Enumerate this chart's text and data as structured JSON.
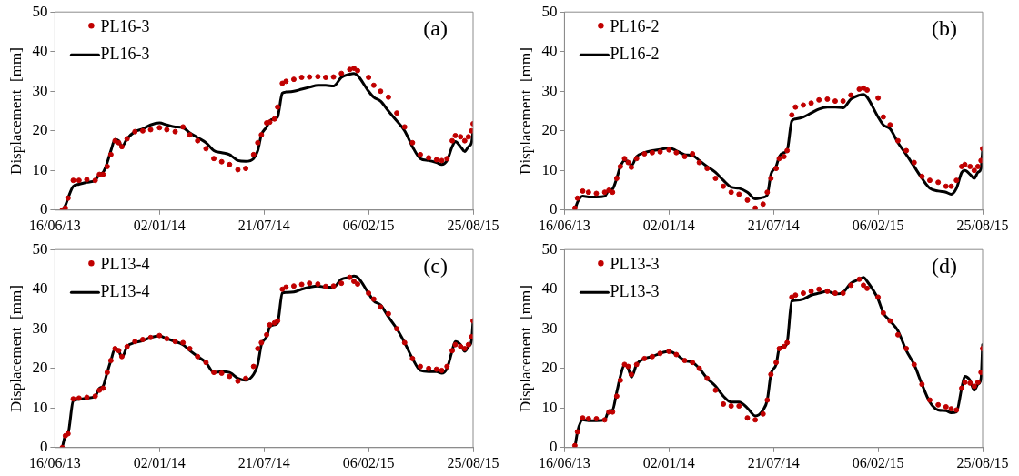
{
  "chart_data": [
    {
      "type": "line",
      "ylabel": "Displacement  [mm]",
      "annotations": [
        "(a)"
      ],
      "legend": "top left",
      "grid": false,
      "xlim": [
        "2013-06-16",
        "2015-08-25"
      ],
      "xticks": [
        {
          "value": "2013-06-16",
          "label": "16/06/13"
        },
        {
          "value": "2014-01-02",
          "label": "02/01/14"
        },
        {
          "value": "2014-07-21",
          "label": "21/07/14"
        },
        {
          "value": "2015-02-06",
          "label": "06/02/15"
        },
        {
          "value": "2015-08-25",
          "label": "25/08/15"
        }
      ],
      "ylim": [
        0,
        50
      ],
      "yticks": [
        0,
        10,
        20,
        30,
        40,
        50
      ],
      "x": [
        "2013-06-30",
        "2013-07-06",
        "2013-07-11",
        "2013-07-21",
        "2013-08-01",
        "2013-08-16",
        "2013-09-01",
        "2013-09-09",
        "2013-09-16",
        "2013-09-24",
        "2013-10-01",
        "2013-10-09",
        "2013-10-16",
        "2013-10-22",
        "2013-11-01",
        "2013-11-16",
        "2013-12-01",
        "2013-12-16",
        "2014-01-02",
        "2014-01-16",
        "2014-02-01",
        "2014-02-16",
        "2014-03-01",
        "2014-03-16",
        "2014-04-01",
        "2014-04-16",
        "2014-05-01",
        "2014-05-16",
        "2014-06-01",
        "2014-06-16",
        "2014-07-01",
        "2014-07-09",
        "2014-07-16",
        "2014-07-26",
        "2014-08-01",
        "2014-08-10",
        "2014-08-16",
        "2014-08-25",
        "2014-09-01",
        "2014-09-16",
        "2014-10-01",
        "2014-10-16",
        "2014-11-01",
        "2014-11-16",
        "2014-12-01",
        "2014-12-16",
        "2015-01-01",
        "2015-01-09",
        "2015-01-16",
        "2015-02-06",
        "2015-02-16",
        "2015-03-01",
        "2015-03-16",
        "2015-04-01",
        "2015-04-16",
        "2015-05-01",
        "2015-05-16",
        "2015-06-01",
        "2015-06-16",
        "2015-06-26",
        "2015-07-06",
        "2015-07-16",
        "2015-07-22",
        "2015-08-01",
        "2015-08-09",
        "2015-08-16",
        "2015-08-22",
        "2015-08-25"
      ],
      "series": [
        {
          "name": "PL16-3",
          "type": "scatter",
          "marker": "circle",
          "color": "#c00000",
          "values": [
            0,
            0.5,
            3,
            7.5,
            7.5,
            7.7,
            7.5,
            9,
            9,
            11,
            14,
            17.5,
            17,
            16,
            18,
            19.8,
            20,
            20.3,
            20.8,
            20.3,
            19.8,
            21,
            19,
            17.5,
            15.5,
            13,
            12.2,
            11.5,
            10.2,
            10.5,
            14,
            17,
            19,
            22,
            22.2,
            23,
            26,
            32,
            32.5,
            33,
            33.5,
            33.6,
            33.7,
            33.5,
            33.6,
            34.5,
            35.5,
            35.8,
            35.2,
            33.5,
            31.5,
            30,
            28.5,
            24.5,
            21,
            17,
            14,
            13.2,
            12.7,
            12.5,
            13,
            17.5,
            18.8,
            18.5,
            17.5,
            18.5,
            20,
            21.8
          ]
        },
        {
          "name": "PL16-3",
          "type": "line",
          "marker": "none",
          "color": "#000000",
          "values": [
            0,
            1.2,
            3,
            6,
            6.5,
            7,
            7.5,
            9,
            9.5,
            12,
            15,
            17.8,
            17.5,
            16,
            18,
            19.8,
            20.5,
            21.5,
            22,
            21.5,
            21,
            20.8,
            19.5,
            18.3,
            17,
            15,
            14.5,
            14,
            12.5,
            12.3,
            13,
            15,
            19,
            21,
            22.5,
            23,
            23.5,
            29.5,
            29.8,
            30,
            30.5,
            31,
            31.5,
            31.5,
            31.3,
            33.5,
            34.3,
            34.5,
            34,
            30,
            28.5,
            27.5,
            25,
            22.5,
            20,
            16,
            13,
            12.5,
            12,
            11.5,
            12.5,
            16,
            17.3,
            16,
            14.8,
            16,
            17,
            20
          ]
        }
      ]
    },
    {
      "type": "line",
      "ylabel": "Displacement  [mm]",
      "annotations": [
        "(b)"
      ],
      "legend": "top left",
      "grid": false,
      "xlim": [
        "2013-06-16",
        "2015-08-25"
      ],
      "xticks": [
        {
          "value": "2013-06-16",
          "label": "16/06/13"
        },
        {
          "value": "2014-01-02",
          "label": "02/01/14"
        },
        {
          "value": "2014-07-21",
          "label": "21/07/14"
        },
        {
          "value": "2015-02-06",
          "label": "06/02/15"
        },
        {
          "value": "2015-08-25",
          "label": "25/08/15"
        }
      ],
      "ylim": [
        0,
        50
      ],
      "yticks": [
        0,
        10,
        20,
        30,
        40,
        50
      ],
      "x": [
        "2013-07-06",
        "2013-07-11",
        "2013-07-21",
        "2013-08-01",
        "2013-08-16",
        "2013-09-01",
        "2013-09-09",
        "2013-09-16",
        "2013-09-24",
        "2013-10-01",
        "2013-10-09",
        "2013-10-16",
        "2013-10-22",
        "2013-11-01",
        "2013-11-16",
        "2013-12-01",
        "2013-12-16",
        "2014-01-02",
        "2014-01-16",
        "2014-02-01",
        "2014-02-16",
        "2014-03-01",
        "2014-03-16",
        "2014-04-01",
        "2014-04-16",
        "2014-05-01",
        "2014-05-16",
        "2014-06-01",
        "2014-06-16",
        "2014-07-01",
        "2014-07-09",
        "2014-07-16",
        "2014-07-26",
        "2014-08-01",
        "2014-08-10",
        "2014-08-16",
        "2014-08-25",
        "2014-09-01",
        "2014-09-16",
        "2014-10-01",
        "2014-10-16",
        "2014-11-01",
        "2014-11-16",
        "2014-12-01",
        "2014-12-16",
        "2015-01-01",
        "2015-01-09",
        "2015-01-16",
        "2015-02-06",
        "2015-02-16",
        "2015-03-01",
        "2015-03-16",
        "2015-04-01",
        "2015-04-16",
        "2015-05-01",
        "2015-05-16",
        "2015-06-01",
        "2015-06-16",
        "2015-06-26",
        "2015-07-06",
        "2015-07-16",
        "2015-07-22",
        "2015-08-01",
        "2015-08-09",
        "2015-08-16",
        "2015-08-22",
        "2015-08-25"
      ],
      "series": [
        {
          "name": "PL16-2",
          "type": "scatter",
          "marker": "circle",
          "color": "#c00000",
          "values": [
            0.5,
            3,
            4.8,
            4.5,
            4.2,
            4.5,
            5,
            4.5,
            8,
            11,
            13,
            12,
            10.8,
            13,
            14.2,
            14.5,
            14.7,
            15.2,
            14.5,
            13.5,
            14.2,
            12,
            10.5,
            8,
            6,
            4.5,
            4,
            2.5,
            0.5,
            1.5,
            4.5,
            8,
            10.5,
            13,
            13.5,
            15,
            24,
            26,
            26.5,
            27,
            27.8,
            28,
            27.5,
            27.5,
            29,
            30.5,
            30.8,
            30.3,
            28.3,
            23.5,
            21.5,
            17.5,
            15,
            12,
            8.5,
            7.5,
            7,
            6,
            6,
            7.5,
            11,
            11.5,
            11,
            10,
            11,
            12.5,
            15.5
          ]
        },
        {
          "name": "PL16-2",
          "type": "line",
          "marker": "none",
          "color": "#000000",
          "values": [
            0,
            2,
            3.5,
            3.3,
            3.3,
            3.5,
            5,
            5.3,
            8,
            11,
            12.5,
            12.3,
            11.2,
            13.5,
            14.5,
            15,
            15.3,
            15.7,
            15,
            14,
            13.8,
            12.5,
            11,
            9.5,
            7.5,
            5.8,
            5.5,
            4.5,
            2.8,
            3.2,
            3.8,
            9,
            11,
            13.5,
            14.5,
            15,
            22.5,
            23,
            23.5,
            24.5,
            25.5,
            26,
            26,
            25.8,
            28,
            29,
            29.2,
            28.5,
            23.5,
            21.5,
            20.5,
            17,
            14,
            11,
            8,
            5.5,
            4.8,
            4.5,
            4,
            5.5,
            9.5,
            10,
            9,
            8,
            9.5,
            10.5,
            15
          ]
        }
      ]
    },
    {
      "type": "line",
      "ylabel": "Displacement  [mm]",
      "annotations": [
        "(c)"
      ],
      "legend": "top left",
      "grid": false,
      "xlim": [
        "2013-06-16",
        "2015-08-25"
      ],
      "xticks": [
        {
          "value": "2013-06-16",
          "label": "16/06/13"
        },
        {
          "value": "2014-01-02",
          "label": "02/01/14"
        },
        {
          "value": "2014-07-21",
          "label": "21/07/14"
        },
        {
          "value": "2015-02-06",
          "label": "06/02/15"
        },
        {
          "value": "2015-08-25",
          "label": "25/08/15"
        }
      ],
      "ylim": [
        0,
        50
      ],
      "yticks": [
        0,
        10,
        20,
        30,
        40,
        50
      ],
      "x": [
        "2013-06-30",
        "2013-07-06",
        "2013-07-11",
        "2013-07-21",
        "2013-08-01",
        "2013-08-16",
        "2013-09-01",
        "2013-09-09",
        "2013-09-16",
        "2013-09-24",
        "2013-10-01",
        "2013-10-09",
        "2013-10-16",
        "2013-10-22",
        "2013-11-01",
        "2013-11-16",
        "2013-12-01",
        "2013-12-16",
        "2014-01-02",
        "2014-01-16",
        "2014-02-01",
        "2014-02-16",
        "2014-03-01",
        "2014-03-16",
        "2014-04-01",
        "2014-04-16",
        "2014-05-01",
        "2014-05-16",
        "2014-06-01",
        "2014-06-16",
        "2014-07-01",
        "2014-07-09",
        "2014-07-16",
        "2014-07-26",
        "2014-08-01",
        "2014-08-10",
        "2014-08-16",
        "2014-08-25",
        "2014-09-01",
        "2014-09-16",
        "2014-10-01",
        "2014-10-16",
        "2014-11-01",
        "2014-11-16",
        "2014-12-01",
        "2014-12-16",
        "2015-01-01",
        "2015-01-09",
        "2015-01-16",
        "2015-02-06",
        "2015-02-16",
        "2015-03-01",
        "2015-03-16",
        "2015-04-01",
        "2015-04-16",
        "2015-05-01",
        "2015-05-16",
        "2015-06-01",
        "2015-06-16",
        "2015-06-26",
        "2015-07-06",
        "2015-07-16",
        "2015-07-22",
        "2015-08-01",
        "2015-08-09",
        "2015-08-16",
        "2015-08-22",
        "2015-08-25"
      ],
      "series": [
        {
          "name": "PL13-4",
          "type": "scatter",
          "marker": "circle",
          "color": "#c00000",
          "values": [
            0,
            3,
            3.5,
            12.3,
            12.5,
            12.7,
            13,
            14.5,
            15,
            19,
            22,
            25,
            24.5,
            23,
            25.5,
            26.8,
            27.3,
            27.8,
            28.3,
            27.5,
            26.8,
            26.5,
            25,
            23,
            21.5,
            19,
            18.8,
            18,
            16.8,
            17.5,
            20.5,
            25,
            26.5,
            28.5,
            31,
            31.5,
            32,
            40,
            40.5,
            40.8,
            41.2,
            41.5,
            41.3,
            40.7,
            40.8,
            41.5,
            43,
            42,
            41.3,
            39,
            37.5,
            35.5,
            33.8,
            30,
            26.5,
            22.5,
            20.5,
            20,
            19.8,
            19.5,
            20.5,
            24.5,
            26,
            25.5,
            25,
            26,
            28,
            32
          ]
        },
        {
          "name": "PL13-4",
          "type": "line",
          "marker": "none",
          "color": "#000000",
          "values": [
            0,
            3,
            3.5,
            11.8,
            12.2,
            12.5,
            13,
            15,
            15.5,
            19,
            22,
            25,
            24.5,
            22.8,
            25.5,
            26.5,
            27,
            27.8,
            28.2,
            27.5,
            26.8,
            26,
            24.5,
            23,
            21.5,
            19,
            19.2,
            19,
            17.5,
            17,
            18.5,
            21,
            26,
            28,
            30.5,
            31,
            31.5,
            39,
            39.2,
            39.3,
            40,
            40.5,
            40.8,
            40.5,
            40.5,
            42.5,
            43,
            43.3,
            43,
            39,
            37,
            36,
            33,
            30,
            26.5,
            22.5,
            19.5,
            19.2,
            19.2,
            18.8,
            20,
            24.5,
            26.8,
            26,
            24.3,
            25.5,
            27,
            32
          ]
        }
      ]
    },
    {
      "type": "line",
      "ylabel": "Displacement  [mm]",
      "annotations": [
        "(d)"
      ],
      "legend": "top left",
      "grid": false,
      "xlim": [
        "2013-06-16",
        "2015-08-25"
      ],
      "xticks": [
        {
          "value": "2013-06-16",
          "label": "16/06/13"
        },
        {
          "value": "2014-01-02",
          "label": "02/01/14"
        },
        {
          "value": "2014-07-21",
          "label": "21/07/14"
        },
        {
          "value": "2015-02-06",
          "label": "06/02/15"
        },
        {
          "value": "2015-08-25",
          "label": "25/08/15"
        }
      ],
      "ylim": [
        0,
        50
      ],
      "yticks": [
        0,
        10,
        20,
        30,
        40,
        50
      ],
      "x": [
        "2013-07-06",
        "2013-07-11",
        "2013-07-21",
        "2013-08-01",
        "2013-08-16",
        "2013-09-01",
        "2013-09-09",
        "2013-09-16",
        "2013-09-24",
        "2013-10-01",
        "2013-10-09",
        "2013-10-16",
        "2013-10-22",
        "2013-11-01",
        "2013-11-16",
        "2013-12-01",
        "2013-12-16",
        "2014-01-02",
        "2014-01-16",
        "2014-02-01",
        "2014-02-16",
        "2014-03-01",
        "2014-03-16",
        "2014-04-01",
        "2014-04-16",
        "2014-05-01",
        "2014-05-16",
        "2014-06-01",
        "2014-06-16",
        "2014-07-01",
        "2014-07-09",
        "2014-07-16",
        "2014-07-26",
        "2014-08-01",
        "2014-08-10",
        "2014-08-16",
        "2014-08-25",
        "2014-09-01",
        "2014-09-16",
        "2014-10-01",
        "2014-10-16",
        "2014-11-01",
        "2014-11-16",
        "2014-12-01",
        "2014-12-16",
        "2015-01-01",
        "2015-01-09",
        "2015-01-16",
        "2015-02-06",
        "2015-02-16",
        "2015-03-01",
        "2015-03-16",
        "2015-04-01",
        "2015-04-16",
        "2015-05-01",
        "2015-05-16",
        "2015-06-01",
        "2015-06-16",
        "2015-06-26",
        "2015-07-06",
        "2015-07-16",
        "2015-07-22",
        "2015-08-01",
        "2015-08-09",
        "2015-08-16",
        "2015-08-22",
        "2015-08-25"
      ],
      "series": [
        {
          "name": "PL13-3",
          "type": "scatter",
          "marker": "circle",
          "color": "#c00000",
          "values": [
            0.5,
            4,
            7.5,
            7.3,
            7.3,
            7,
            9,
            9,
            13,
            17,
            21,
            20.5,
            18.5,
            21,
            22.5,
            23,
            23.8,
            24.3,
            23.5,
            22,
            21.5,
            20,
            17.5,
            14.5,
            11,
            10.5,
            10.5,
            7.5,
            7,
            8.5,
            12,
            18.5,
            21.5,
            25,
            25.5,
            26.5,
            38,
            38.5,
            39,
            39.5,
            40,
            39.5,
            39,
            39,
            41,
            42.5,
            41,
            40.2,
            38,
            34,
            32,
            28.5,
            25,
            21,
            16,
            12,
            10.8,
            10.3,
            9.8,
            9.5,
            15,
            16.5,
            16.3,
            15.5,
            16.5,
            19,
            25
          ]
        },
        {
          "name": "PL13-3",
          "type": "line",
          "marker": "none",
          "color": "#000000",
          "values": [
            0,
            4,
            7,
            6.8,
            6.8,
            7,
            9.3,
            9.5,
            14,
            18,
            21,
            20,
            17.8,
            21,
            22.5,
            23,
            23.8,
            24.3,
            23.5,
            22,
            21.5,
            20,
            17.5,
            15.5,
            13,
            11.5,
            11.5,
            10,
            8,
            9.5,
            12,
            18.5,
            21,
            25,
            25.5,
            26.5,
            37,
            37.2,
            37.5,
            38.5,
            39,
            39.5,
            38.8,
            39.2,
            41.5,
            42.5,
            43,
            42,
            37.5,
            34,
            32,
            29.5,
            24.5,
            21,
            16,
            11.5,
            9.5,
            9.3,
            8.8,
            9,
            15,
            18,
            17,
            14.5,
            16,
            17.5,
            26
          ]
        }
      ]
    }
  ]
}
